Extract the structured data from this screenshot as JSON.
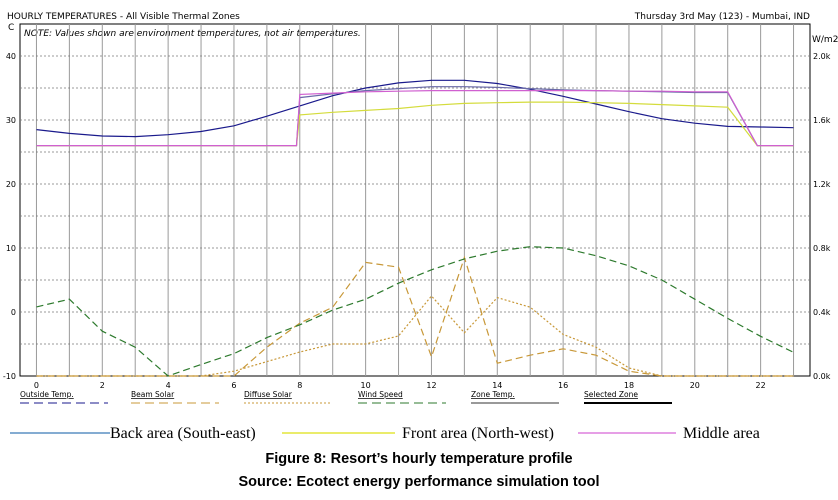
{
  "header": {
    "title": "HOURLY TEMPERATURES - All Visible Thermal Zones",
    "date_location": "Thursday 3rd May (123) - Mumbai, IND",
    "note": "NOTE: Values shown are environment temperatures, not air temperatures.",
    "left_unit": "C",
    "right_unit": "W/m2"
  },
  "chart_data": {
    "type": "line",
    "xlim": [
      -0.5,
      23.5
    ],
    "x_ticks": [
      "0",
      "2",
      "4",
      "6",
      "8",
      "10",
      "12",
      "14",
      "16",
      "18",
      "20",
      "22"
    ],
    "ylim_left": [
      -10,
      45
    ],
    "ylim_right": [
      0,
      2.2
    ],
    "y_ticks_left": [
      "-10",
      "0",
      "10",
      "20",
      "30",
      "40"
    ],
    "y_ticks_right": [
      "0.0k",
      "0.4k",
      "0.8k",
      "1.2k",
      "1.6k",
      "2.0k"
    ],
    "grid": true,
    "series": [
      {
        "name": "Outside Temp.",
        "color": "#1a1a8c",
        "dash": "solid",
        "axis": "left",
        "x": [
          0,
          1,
          2,
          3,
          4,
          5,
          6,
          7,
          8,
          9,
          10,
          11,
          12,
          13,
          14,
          15,
          16,
          17,
          18,
          19,
          20,
          21,
          22,
          23
        ],
        "values": [
          28.5,
          27.9,
          27.5,
          27.4,
          27.7,
          28.2,
          29.1,
          30.6,
          32.2,
          33.8,
          35.0,
          35.8,
          36.2,
          36.2,
          35.7,
          34.8,
          33.7,
          32.5,
          31.3,
          30.2,
          29.5,
          29.0,
          28.9,
          28.8
        ]
      },
      {
        "name": "Back area (South-east)",
        "color": "#6a6aa8",
        "dash": "solid",
        "axis": "left",
        "x": [
          0,
          1,
          2,
          3,
          4,
          5,
          6,
          7,
          7.9,
          8,
          9,
          10,
          11,
          12,
          13,
          14,
          15,
          16,
          17,
          18,
          19,
          20,
          21,
          21.9,
          22,
          23
        ],
        "values": [
          26,
          26,
          26,
          26,
          26,
          26,
          26,
          26,
          26,
          33.5,
          34.1,
          34.6,
          34.9,
          35.2,
          35.2,
          35.1,
          34.9,
          34.7,
          34.6,
          34.5,
          34.4,
          34.3,
          34.3,
          26,
          26,
          26
        ]
      },
      {
        "name": "Front area (North-west)",
        "color": "#d4dc3c",
        "dash": "solid",
        "axis": "left",
        "x": [
          0,
          1,
          2,
          3,
          4,
          5,
          6,
          7,
          7.9,
          8,
          9,
          10,
          11,
          12,
          13,
          14,
          15,
          16,
          17,
          18,
          19,
          20,
          21,
          21.9,
          22,
          23
        ],
        "values": [
          26,
          26,
          26,
          26,
          26,
          26,
          26,
          26,
          26,
          30.8,
          31.2,
          31.5,
          31.8,
          32.3,
          32.6,
          32.7,
          32.8,
          32.8,
          32.7,
          32.6,
          32.4,
          32.2,
          32.0,
          26,
          26,
          26
        ]
      },
      {
        "name": "Middle area",
        "color": "#d060d0",
        "dash": "solid",
        "axis": "left",
        "x": [
          0,
          1,
          2,
          3,
          4,
          5,
          6,
          7,
          7.9,
          8,
          9,
          10,
          11,
          12,
          13,
          14,
          15,
          16,
          17,
          18,
          19,
          20,
          21,
          21.9,
          22,
          23
        ],
        "values": [
          26,
          26,
          26,
          26,
          26,
          26,
          26,
          26,
          26,
          34.0,
          34.2,
          34.4,
          34.5,
          34.6,
          34.6,
          34.6,
          34.6,
          34.6,
          34.6,
          34.5,
          34.5,
          34.4,
          34.4,
          26,
          26,
          26
        ]
      },
      {
        "name": "Beam Solar",
        "color": "#c89838",
        "dash": "long",
        "axis": "right",
        "x": [
          0,
          1,
          2,
          3,
          4,
          5,
          6,
          7,
          8,
          9,
          10,
          11,
          12,
          13,
          14,
          15,
          16,
          17,
          18,
          19,
          20,
          21,
          22,
          23
        ],
        "values": [
          0,
          0,
          0,
          0,
          0,
          0,
          0,
          0.18,
          0.33,
          0.43,
          0.71,
          0.68,
          0.12,
          0.74,
          0.08,
          0.13,
          0.17,
          0.13,
          0.03,
          0,
          0,
          0,
          0,
          0
        ]
      },
      {
        "name": "Diffuse Solar",
        "color": "#c89838",
        "dash": "short",
        "axis": "right",
        "x": [
          0,
          1,
          2,
          3,
          4,
          5,
          6,
          7,
          8,
          9,
          10,
          11,
          12,
          13,
          14,
          15,
          16,
          17,
          18,
          19,
          20,
          21,
          22,
          23
        ],
        "values": [
          0,
          0,
          0,
          0,
          0,
          0,
          0.03,
          0.09,
          0.15,
          0.2,
          0.2,
          0.25,
          0.5,
          0.27,
          0.49,
          0.43,
          0.26,
          0.18,
          0.05,
          0,
          0,
          0,
          0,
          0
        ]
      },
      {
        "name": "Wind Speed",
        "color": "#2d7a2d",
        "dash": "long",
        "axis": "left",
        "x": [
          0,
          1,
          2,
          3,
          4,
          5,
          6,
          7,
          8,
          9,
          10,
          11,
          12,
          13,
          14,
          15,
          16,
          17,
          18,
          19,
          20,
          21,
          22,
          23
        ],
        "values": [
          0.8,
          2.0,
          -3.0,
          -5.5,
          -10,
          -8.2,
          -6.5,
          -4.0,
          -2.0,
          0.3,
          2.0,
          4.5,
          6.6,
          8.3,
          9.5,
          10.2,
          10.0,
          8.8,
          7.2,
          5.0,
          2.0,
          -1.0,
          -3.8,
          -6.3
        ]
      }
    ]
  },
  "legend": {
    "items": [
      "Outside Temp.",
      "Beam Solar",
      "Diffuse Solar",
      "Wind Speed",
      "Zone Temp.",
      "Selected Zone"
    ]
  },
  "external_legend": {
    "items": [
      "Back area (South-east)",
      "Front area (North-west)",
      "Middle area"
    ]
  },
  "caption": {
    "figure": "Figure 8:  Resort’s hourly temperature profile",
    "source": "Source: Ecotect energy performance simulation tool"
  }
}
